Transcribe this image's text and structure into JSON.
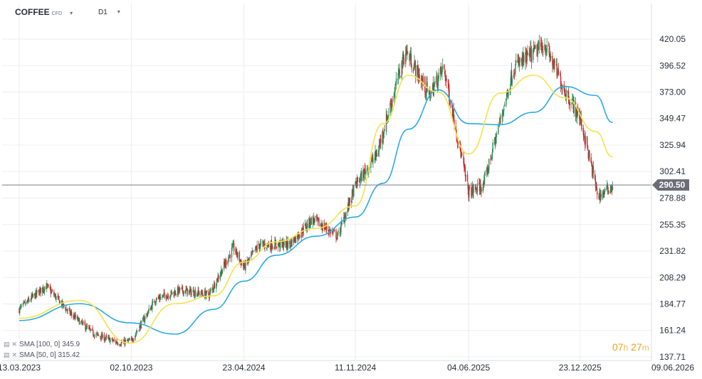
{
  "header": {
    "symbol": "COFFEE",
    "suffix": "CFD",
    "timeframe": "D1",
    "caret": "▾"
  },
  "legend": [
    {
      "label": "SMA [100, 0] 345.9",
      "color": "#29abe2"
    },
    {
      "label": "SMA [50, 0] 315.42",
      "color": "#f5e14b"
    }
  ],
  "countdown": {
    "hours": "07",
    "h_unit": "h",
    "minutes": "27",
    "m_unit": "m"
  },
  "colors": {
    "up": "#2e8b57",
    "down": "#c62828",
    "sma100": "#29abe2",
    "sma50": "#f5e14b",
    "grid": "#ebedf0",
    "price_line": "#787b86"
  },
  "chart_data": {
    "type": "candlestick",
    "title": "COFFEE CFD",
    "timeframe": "D1",
    "ylim": [
      137.71,
      431.6
    ],
    "y_ticks": [
      "420.05",
      "396.52",
      "373.00",
      "349.47",
      "325.94",
      "302.41",
      "278.88",
      "255.35",
      "231.82",
      "208.29",
      "184.77",
      "161.24",
      "137.71"
    ],
    "x_ticks": [
      "13.03.2023",
      "02.10.2023",
      "23.04.2024",
      "11.11.2024",
      "04.06.2025",
      "23.12.2025",
      "09.06.2026"
    ],
    "current_price": 290.5,
    "current_price_label": "290.50",
    "close_series": {
      "dates": [
        "13.03.2023",
        "30.04.2023",
        "10.06.2023",
        "26.07.2023",
        "10.09.2023",
        "02.10.2023",
        "15.11.2023",
        "30.12.2023",
        "20.02.2024",
        "04.04.2024",
        "23.04.2024",
        "20.05.2024",
        "15.07.2024",
        "25.08.2024",
        "10.10.2024",
        "11.11.2024",
        "20.12.2024",
        "10.02.2025",
        "25.03.2025",
        "20.04.2025",
        "04.06.2025",
        "01.07.2025",
        "25.08.2025",
        "20.10.2025",
        "25.11.2025",
        "23.12.2025",
        "25.01.2026",
        "20.02.2026"
      ],
      "values": [
        180,
        201,
        178,
        158,
        150,
        152,
        189,
        197,
        193,
        235,
        217,
        237,
        238,
        260,
        245,
        290,
        318,
        410,
        370,
        395,
        284,
        290,
        395,
        415,
        375,
        350,
        280,
        290
      ]
    },
    "series": [
      {
        "name": "SMA [100, 0] 345.9",
        "dates": [
          "13.03.2023",
          "30.06.2023",
          "30.09.2023",
          "20.12.2023",
          "28.02.2024",
          "23.04.2024",
          "20.06.2024",
          "01.09.2024",
          "11.11.2024",
          "31.12.2024",
          "15.02.2025",
          "10.04.2025",
          "04.06.2025",
          "31.07.2025",
          "30.09.2025",
          "25.11.2025",
          "20.01.2026",
          "20.02.2026"
        ],
        "values": [
          170,
          185,
          168,
          158,
          180,
          205,
          228,
          245,
          262,
          292,
          340,
          375,
          345,
          344,
          355,
          378,
          370,
          345.9
        ]
      },
      {
        "name": "SMA [50, 0] 315.42",
        "dates": [
          "13.03.2023",
          "30.06.2023",
          "30.09.2023",
          "20.12.2023",
          "28.02.2024",
          "23.04.2024",
          "20.06.2024",
          "01.09.2024",
          "11.11.2024",
          "31.12.2024",
          "15.02.2025",
          "10.04.2025",
          "04.06.2025",
          "31.07.2025",
          "30.09.2025",
          "25.11.2025",
          "20.01.2026",
          "20.02.2026"
        ],
        "values": [
          172,
          188,
          150,
          185,
          192,
          222,
          240,
          252,
          272,
          345,
          388,
          373,
          318,
          372,
          388,
          368,
          338,
          315.42
        ]
      }
    ]
  }
}
